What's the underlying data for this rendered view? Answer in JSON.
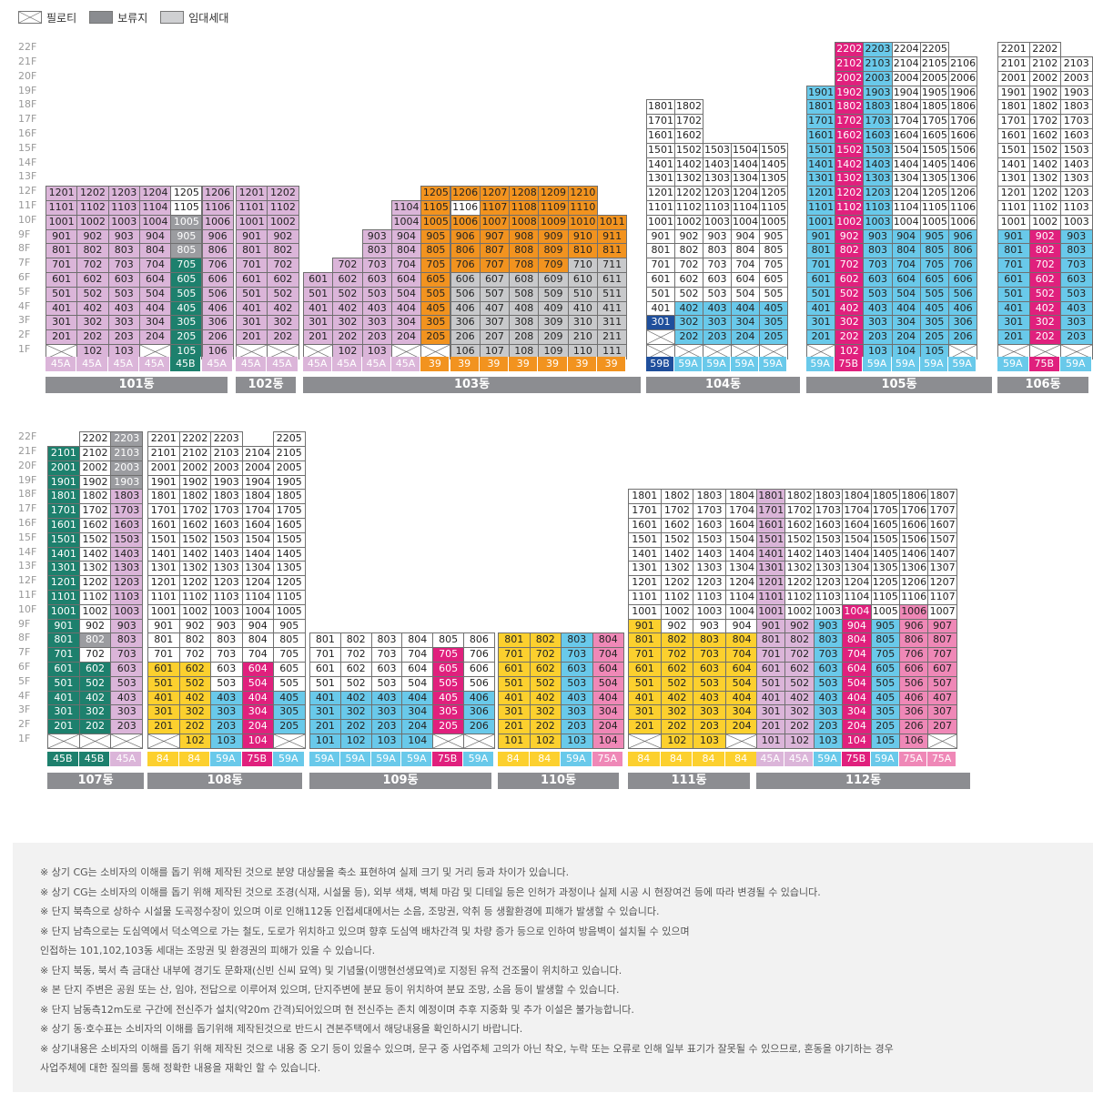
{
  "legend": {
    "piloti": "필로티",
    "reserved": "보류지",
    "rental": "임대세대"
  },
  "colors": {
    "lavender": "#dbb5d9",
    "green": "#1d806d",
    "gray": "#9b9ca0",
    "lightgray": "#c8c9cb",
    "orange": "#f2931f",
    "blue": "#69c9ea",
    "navy": "#1f4f9c",
    "magenta": "#e0207d",
    "yellow": "#fcd02e",
    "pink": "#ef88b7",
    "type45A": "#dbb5d9",
    "type45B": "#1d806d",
    "type39": "#f2931f",
    "type59A": "#69c9ea",
    "type59B": "#1f4f9c",
    "type75B": "#e0207d",
    "type84": "#fcd02e",
    "type75A": "#ef88b7"
  },
  "floor_labels": [
    "22F",
    "21F",
    "20F",
    "19F",
    "18F",
    "17F",
    "16F",
    "15F",
    "14F",
    "13F",
    "12F",
    "11F",
    "10F",
    "9F",
    "8F",
    "7F",
    "6F",
    "5F",
    "4F",
    "3F",
    "2F",
    "1F"
  ],
  "buildings": [
    {
      "name": "101동",
      "row": 0,
      "units": 6,
      "types": [
        "45A",
        "45A",
        "45A",
        "45A",
        "45B",
        "45A"
      ],
      "floors": {
        "12": "LLLLWL",
        "11": "LLLLWL",
        "10": "LLLLYL",
        "9": "LLLLYL",
        "8": "LLLLYL",
        "7": "LLLLGL",
        "6": "LLLLGL",
        "5": "LLLLGL",
        "4": "LLLLGL",
        "3": "LLLLGL",
        "2": "LLLLGL",
        "1": "PLLPGL"
      }
    },
    {
      "name": "102동",
      "row": 0,
      "units": 2,
      "types": [
        "45A",
        "45A"
      ],
      "floors": {
        "12": "LL",
        "11": "LL",
        "10": "LL",
        "9": "LL",
        "8": "LL",
        "7": "LL",
        "6": "LL",
        "5": "LL",
        "4": "LL",
        "3": "LL",
        "2": "LL",
        "1": "PP"
      }
    },
    {
      "name": "103동",
      "row": 0,
      "units": 11,
      "types": [
        "45A",
        "45A",
        "45A",
        "45A",
        "39",
        "39",
        "39",
        "39",
        "39",
        "39",
        "39"
      ],
      "floors": {
        "12": "----OOOOOO-",
        "11": "---LOWOOOO-",
        "10": "---LOOOOOOO",
        "9": "--LLOOOOOOO",
        "8": "--LLOOOOOOO",
        "7": "-LLLOOOOOXX",
        "6": "LLLLOXXXXXX",
        "5": "LLLLOXXXXXX",
        "4": "LLLLOXXXXXX",
        "3": "LLLLOXXXXXX",
        "2": "LLLLOXXXXXX",
        "1": "PLLPPXXXXXX"
      }
    },
    {
      "name": "104동",
      "row": 0,
      "units": 5,
      "types": [
        "59B",
        "59A",
        "59A",
        "59A",
        "59A"
      ],
      "floors": {
        "18": "WW---",
        "17": "WW---",
        "16": "WW---",
        "15": "WWWWW",
        "14": "WWWWW",
        "13": "WWWWW",
        "12": "WWWWW",
        "11": "WWWWW",
        "10": "WWWWW",
        "9": "WWWWW",
        "8": "WWWWW",
        "7": "WWWWW",
        "6": "WWWWW",
        "5": "WWWWW",
        "4": "WBBBB",
        "3": "NBBBB",
        "2": "PBBBB",
        "1": "PPPPP"
      }
    },
    {
      "name": "105동",
      "row": 0,
      "units": 6,
      "types": [
        "59A",
        "75B",
        "59A",
        "59A",
        "59A",
        "59A"
      ],
      "floors": {
        "22": "-MBWW-",
        "21": "-MBWWW",
        "20": "-MBWWW",
        "19": "BMBWWW",
        "18": "BMBWWW",
        "17": "BMBWWW",
        "16": "BMBWWW",
        "15": "BMBWWW",
        "14": "BMBWWW",
        "13": "BMBWWW",
        "12": "BMBWWW",
        "11": "BMBWWW",
        "10": "BMBWWW",
        "9": "BMBBBB",
        "8": "BMBBBB",
        "7": "BMBBBB",
        "6": "BMBBBB",
        "5": "BMBBBB",
        "4": "BMBBBB",
        "3": "BMBBBB",
        "2": "BMBBBB",
        "1": "PMBBBP"
      }
    },
    {
      "name": "106동",
      "row": 0,
      "units": 3,
      "types": [
        "59A",
        "75B",
        "59A"
      ],
      "floors": {
        "22": "WW-",
        "21": "WWW",
        "20": "WWW",
        "19": "WWW",
        "18": "WWW",
        "17": "WWW",
        "16": "WWW",
        "15": "WWW",
        "14": "WWW",
        "13": "WWW",
        "12": "WWW",
        "11": "WWW",
        "10": "WWW",
        "9": "BMB",
        "8": "BMB",
        "7": "BMB",
        "6": "BMB",
        "5": "BMB",
        "4": "BMB",
        "3": "BMB",
        "2": "BMB",
        "1": "PPP"
      }
    },
    {
      "name": "107동",
      "row": 1,
      "units": 3,
      "types": [
        "45B",
        "45B",
        "45A"
      ],
      "floors": {
        "22": "-WY",
        "21": "GWY",
        "20": "GWY",
        "19": "GWY",
        "18": "GWL",
        "17": "GWL",
        "16": "GWL",
        "15": "GWL",
        "14": "GWL",
        "13": "GWL",
        "12": "GWL",
        "11": "GWL",
        "10": "GWL",
        "9": "GWL",
        "8": "GYL",
        "7": "GWL",
        "6": "GGL",
        "5": "GGL",
        "4": "GGL",
        "3": "GGL",
        "2": "GGL",
        "1": "PPP"
      }
    },
    {
      "name": "108동",
      "row": 1,
      "units": 5,
      "types": [
        "84",
        "84",
        "59A",
        "75B",
        "59A"
      ],
      "floors": {
        "22": "WWW-W",
        "21": "WWWWW",
        "20": "WWWWW",
        "19": "WWWWW",
        "18": "WWWWW",
        "17": "WWWWW",
        "16": "WWWWW",
        "15": "WWWWW",
        "14": "WWWWW",
        "13": "WWWWW",
        "12": "WWWWW",
        "11": "WWWWW",
        "10": "WWWWW",
        "9": "WWWWW",
        "8": "WWWWW",
        "7": "WWWWW",
        "6": "EEWMW",
        "5": "EEWMW",
        "4": "EEBMB",
        "3": "EEBMB",
        "2": "EEBMB",
        "1": "PEBMP"
      }
    },
    {
      "name": "109동",
      "row": 1,
      "units": 6,
      "types": [
        "59A",
        "59A",
        "59A",
        "59A",
        "75B",
        "59A"
      ],
      "floors": {
        "8": "WWWWWW",
        "7": "WWWWMW",
        "6": "WWWWMW",
        "5": "WWWWMW",
        "4": "BBBBMB",
        "3": "BBBBMB",
        "2": "BBBBMB",
        "1": "BBBBPP"
      }
    },
    {
      "name": "110동",
      "row": 1,
      "units": 4,
      "types": [
        "84",
        "84",
        "59A",
        "75A"
      ],
      "floors": {
        "8": "EEBK",
        "7": "EEBK",
        "6": "EEBK",
        "5": "EEBK",
        "4": "EEBK",
        "3": "EEBK",
        "2": "EEBK",
        "1": "EEBK"
      }
    },
    {
      "name": "111동",
      "row": 1,
      "units": 4,
      "types": [
        "84",
        "84",
        "84",
        "84"
      ],
      "floors": {
        "18": "WWWW",
        "17": "WWWW",
        "16": "WWWW",
        "15": "WWWW",
        "14": "WWWW",
        "13": "WWWW",
        "12": "WWWW",
        "11": "WWWW",
        "10": "WWWW",
        "9": "EWWW",
        "8": "EEEE",
        "7": "EEEE",
        "6": "EEEE",
        "5": "EEEE",
        "4": "EEEE",
        "3": "EEEE",
        "2": "EEEE",
        "1": "PEEP"
      }
    },
    {
      "name": "112동",
      "row": 1,
      "units": 7,
      "types": [
        "45A",
        "45A",
        "59A",
        "75B",
        "59A",
        "75A",
        "75A"
      ],
      "floors": {
        "18": "LWWWWWW",
        "17": "LWWWWWW",
        "16": "LWWWWWW",
        "15": "LWWWWWW",
        "14": "LWWWWWW",
        "13": "LWWWWWW",
        "12": "LWWWWWW",
        "11": "LWWWWWW",
        "10": "LWWMWKW",
        "9": "LLBMBKK",
        "8": "LLBMBKK",
        "7": "LLBMBKK",
        "6": "LLBMBKK",
        "5": "LLBMBKK",
        "4": "LLBMBKK",
        "3": "LLBMBKK",
        "2": "LLBMBKK",
        "1": "LLBMBKP"
      }
    }
  ],
  "notes": [
    "※ 상기 CG는 소비자의 이해를 돕기 위해 제작된 것으로 분양 대상물을 축소 표현하여 실제 크기 및 거리 등과 차이가 있습니다.",
    "※ 상기 CG는 소비자의 이해를 돕기 위해 제작된 것으로 조경(식재, 시설물 등), 외부 색채, 벽체 마감 및 디테일 등은 인허가 과정이나 실제 시공 시 현장여건 등에 따라 변경될 수 있습니다.",
    "※ 단지 북측으로 상하수 시설물 도곡정수장이 있으며 이로 인해112동 인접세대에서는 소음, 조망권, 악취 등 생활환경에 피해가 발생할 수 있습니다.",
    "※ 단지 남측으로는 도심역에서 덕소역으로 가는 철도, 도로가 위치하고 있으며 향후 도심역 배차간격 및 차량 증가 등으로 인하여 방음벽이 설치될 수 있으며",
    "   인접하는 101,102,103동 세대는 조망권 및 환경권의 피해가 있을 수 있습니다.",
    "※ 단지 북동, 북서 측 금대산 내부에 경기도 문화재(신빈 신씨 묘역) 및 기념물(이맹현선생묘역)로 지정된 유적 건조물이 위치하고 있습니다.",
    "※ 본 단지 주변은 공원 또는 산, 임야, 전답으로 이루어져 있으며, 단지주변에 분묘 등이 위치하여 분묘 조망, 소음 등이 발생할 수 있습니다.",
    "※ 단지 남동측12m도로 구간에 전신주가 설치(약20m 간격)되어있으며 현 전신주는 존치 예정이며 추후 지중화 및 추가 이설은 불가능합니다.",
    "※ 상기 동·호수표는 소비자의 이해를 돕기위해 제작된것으로 반드시 견본주택에서 해당내용을 확인하시기 바랍니다.",
    "※ 상기내용은 소비자의 이해를 돕기 위해 제작된 것으로 내용 중 오기 등이 있을수 있으며, 문구 중 사업주체 고의가 아닌 착오, 누락 또는 오류로 인해 일부 표기가 잘못될 수 있으므로, 혼동을 야기하는 경우",
    "   사업주체에 대한 질의를 통해 정확한 내용을 재확인 할 수 있습니다."
  ]
}
